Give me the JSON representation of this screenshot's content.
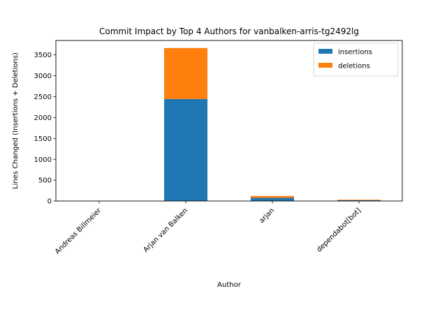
{
  "chart_data": {
    "type": "bar",
    "stacked": true,
    "title": "Commit Impact by Top 4 Authors for vanbalken-arris-tg2492lg",
    "xlabel": "Author",
    "ylabel": "Lines Changed (Insertions + Deletions)",
    "categories": [
      "Andreas Billmeier",
      "Arjan van Balken",
      "arjan",
      "dependabot[bot]"
    ],
    "series": [
      {
        "name": "insertions",
        "color": "#1f77b4",
        "values": [
          2,
          2443,
          75,
          18
        ]
      },
      {
        "name": "deletions",
        "color": "#ff7f0e",
        "values": [
          1,
          1221,
          45,
          14
        ]
      }
    ],
    "ylim": [
      0,
      3845
    ],
    "yticks": [
      0,
      500,
      1000,
      1500,
      2000,
      2500,
      3000,
      3500
    ],
    "grid": false,
    "legend_position": "top-right"
  }
}
